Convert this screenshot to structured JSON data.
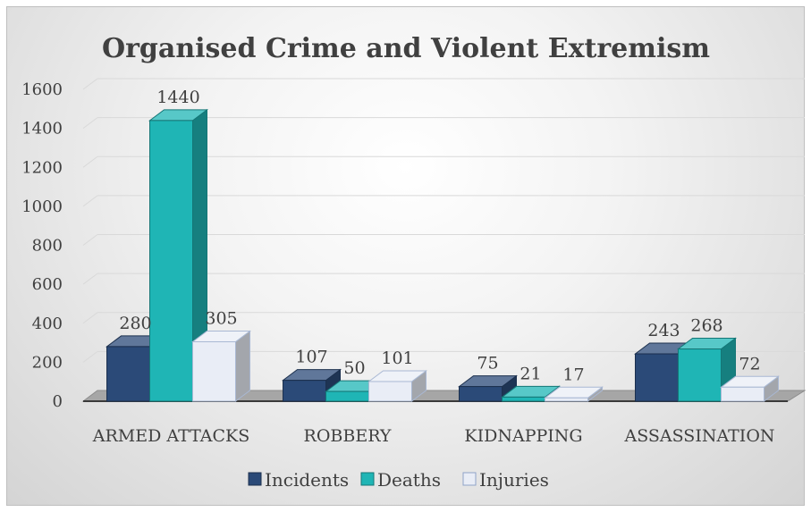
{
  "chart_data": {
    "type": "bar",
    "title": "Organised Crime and Violent Extremism",
    "categories": [
      "ARMED ATTACKS",
      "ROBBERY",
      "KIDNAPPING",
      "ASSASSINATION"
    ],
    "series": [
      {
        "name": "Incidents",
        "values": [
          280,
          107,
          75,
          243
        ],
        "color": "#2b4a78"
      },
      {
        "name": "Deaths",
        "values": [
          1440,
          50,
          21,
          268
        ],
        "color": "#1fb5b5"
      },
      {
        "name": "Injuries",
        "values": [
          305,
          101,
          17,
          72
        ],
        "color": "#e9edf6"
      }
    ],
    "yticks": [
      "0",
      "200",
      "400",
      "600",
      "800",
      "1000",
      "1200",
      "1400",
      "1600"
    ],
    "ylim": [
      0,
      1600
    ],
    "grid": true,
    "legend": "bottom",
    "style": "3d-clustered-column"
  }
}
